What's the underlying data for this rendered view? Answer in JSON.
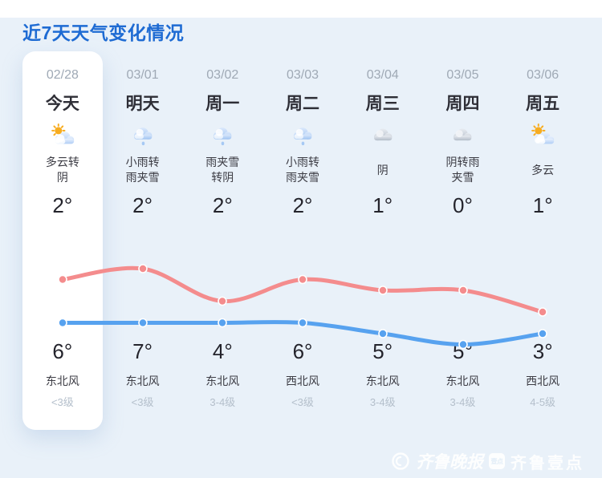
{
  "title": "近7天天气变化情况",
  "days": [
    {
      "date": "02/28",
      "label": "今天",
      "icon": "partly-sunny",
      "desc": "多云转阴",
      "temp_top": "2°",
      "temp_bottom": "6°",
      "wind_dir": "东北风",
      "wind_level": "<3级",
      "is_today": true
    },
    {
      "date": "03/01",
      "label": "明天",
      "icon": "rain",
      "desc": "小雨转雨夹雪",
      "temp_top": "2°",
      "temp_bottom": "7°",
      "wind_dir": "东北风",
      "wind_level": "<3级",
      "is_today": false
    },
    {
      "date": "03/02",
      "label": "周一",
      "icon": "rain",
      "desc": "雨夹雪转阴",
      "temp_top": "2°",
      "temp_bottom": "4°",
      "wind_dir": "东北风",
      "wind_level": "3-4级",
      "is_today": false
    },
    {
      "date": "03/03",
      "label": "周二",
      "icon": "rain",
      "desc": "小雨转雨夹雪",
      "temp_top": "2°",
      "temp_bottom": "6°",
      "wind_dir": "西北风",
      "wind_level": "<3级",
      "is_today": false
    },
    {
      "date": "03/04",
      "label": "周三",
      "icon": "overcast",
      "desc": "阴",
      "temp_top": "1°",
      "temp_bottom": "5°",
      "wind_dir": "东北风",
      "wind_level": "3-4级",
      "is_today": false
    },
    {
      "date": "03/05",
      "label": "周四",
      "icon": "overcast",
      "desc": "阴转雨夹雪",
      "temp_top": "0°",
      "temp_bottom": "5°",
      "wind_dir": "东北风",
      "wind_level": "3-4级",
      "is_today": false
    },
    {
      "date": "03/06",
      "label": "周五",
      "icon": "partly-sunny",
      "desc": "多云",
      "temp_top": "1°",
      "temp_bottom": "3°",
      "wind_dir": "西北风",
      "wind_level": "4-5级",
      "is_today": false
    }
  ],
  "chart_data": {
    "type": "line",
    "x": [
      "02/28",
      "03/01",
      "03/02",
      "03/03",
      "03/04",
      "03/05",
      "03/06"
    ],
    "series": [
      {
        "name": "red-temperature-line",
        "color": "#F48C8D",
        "values": [
          6,
          7,
          4,
          6,
          5,
          5,
          3
        ]
      },
      {
        "name": "blue-temperature-line",
        "color": "#57A2EF",
        "values": [
          2,
          2,
          2,
          2,
          1,
          0,
          1
        ]
      }
    ],
    "ylim": [
      -1,
      8
    ],
    "grid": false,
    "legend": false,
    "axes": "hidden",
    "title": "",
    "xlabel": "",
    "ylabel": ""
  },
  "watermark": {
    "newspaper": "齐鲁晚报",
    "badge": "壹点",
    "app": "齐鲁壹点"
  },
  "colors": {
    "title": "#1E6BD3",
    "background": "#E9F1F9",
    "card": "#FFFFFF",
    "accent_red": "#F48C8D",
    "accent_blue": "#57A2EF"
  }
}
